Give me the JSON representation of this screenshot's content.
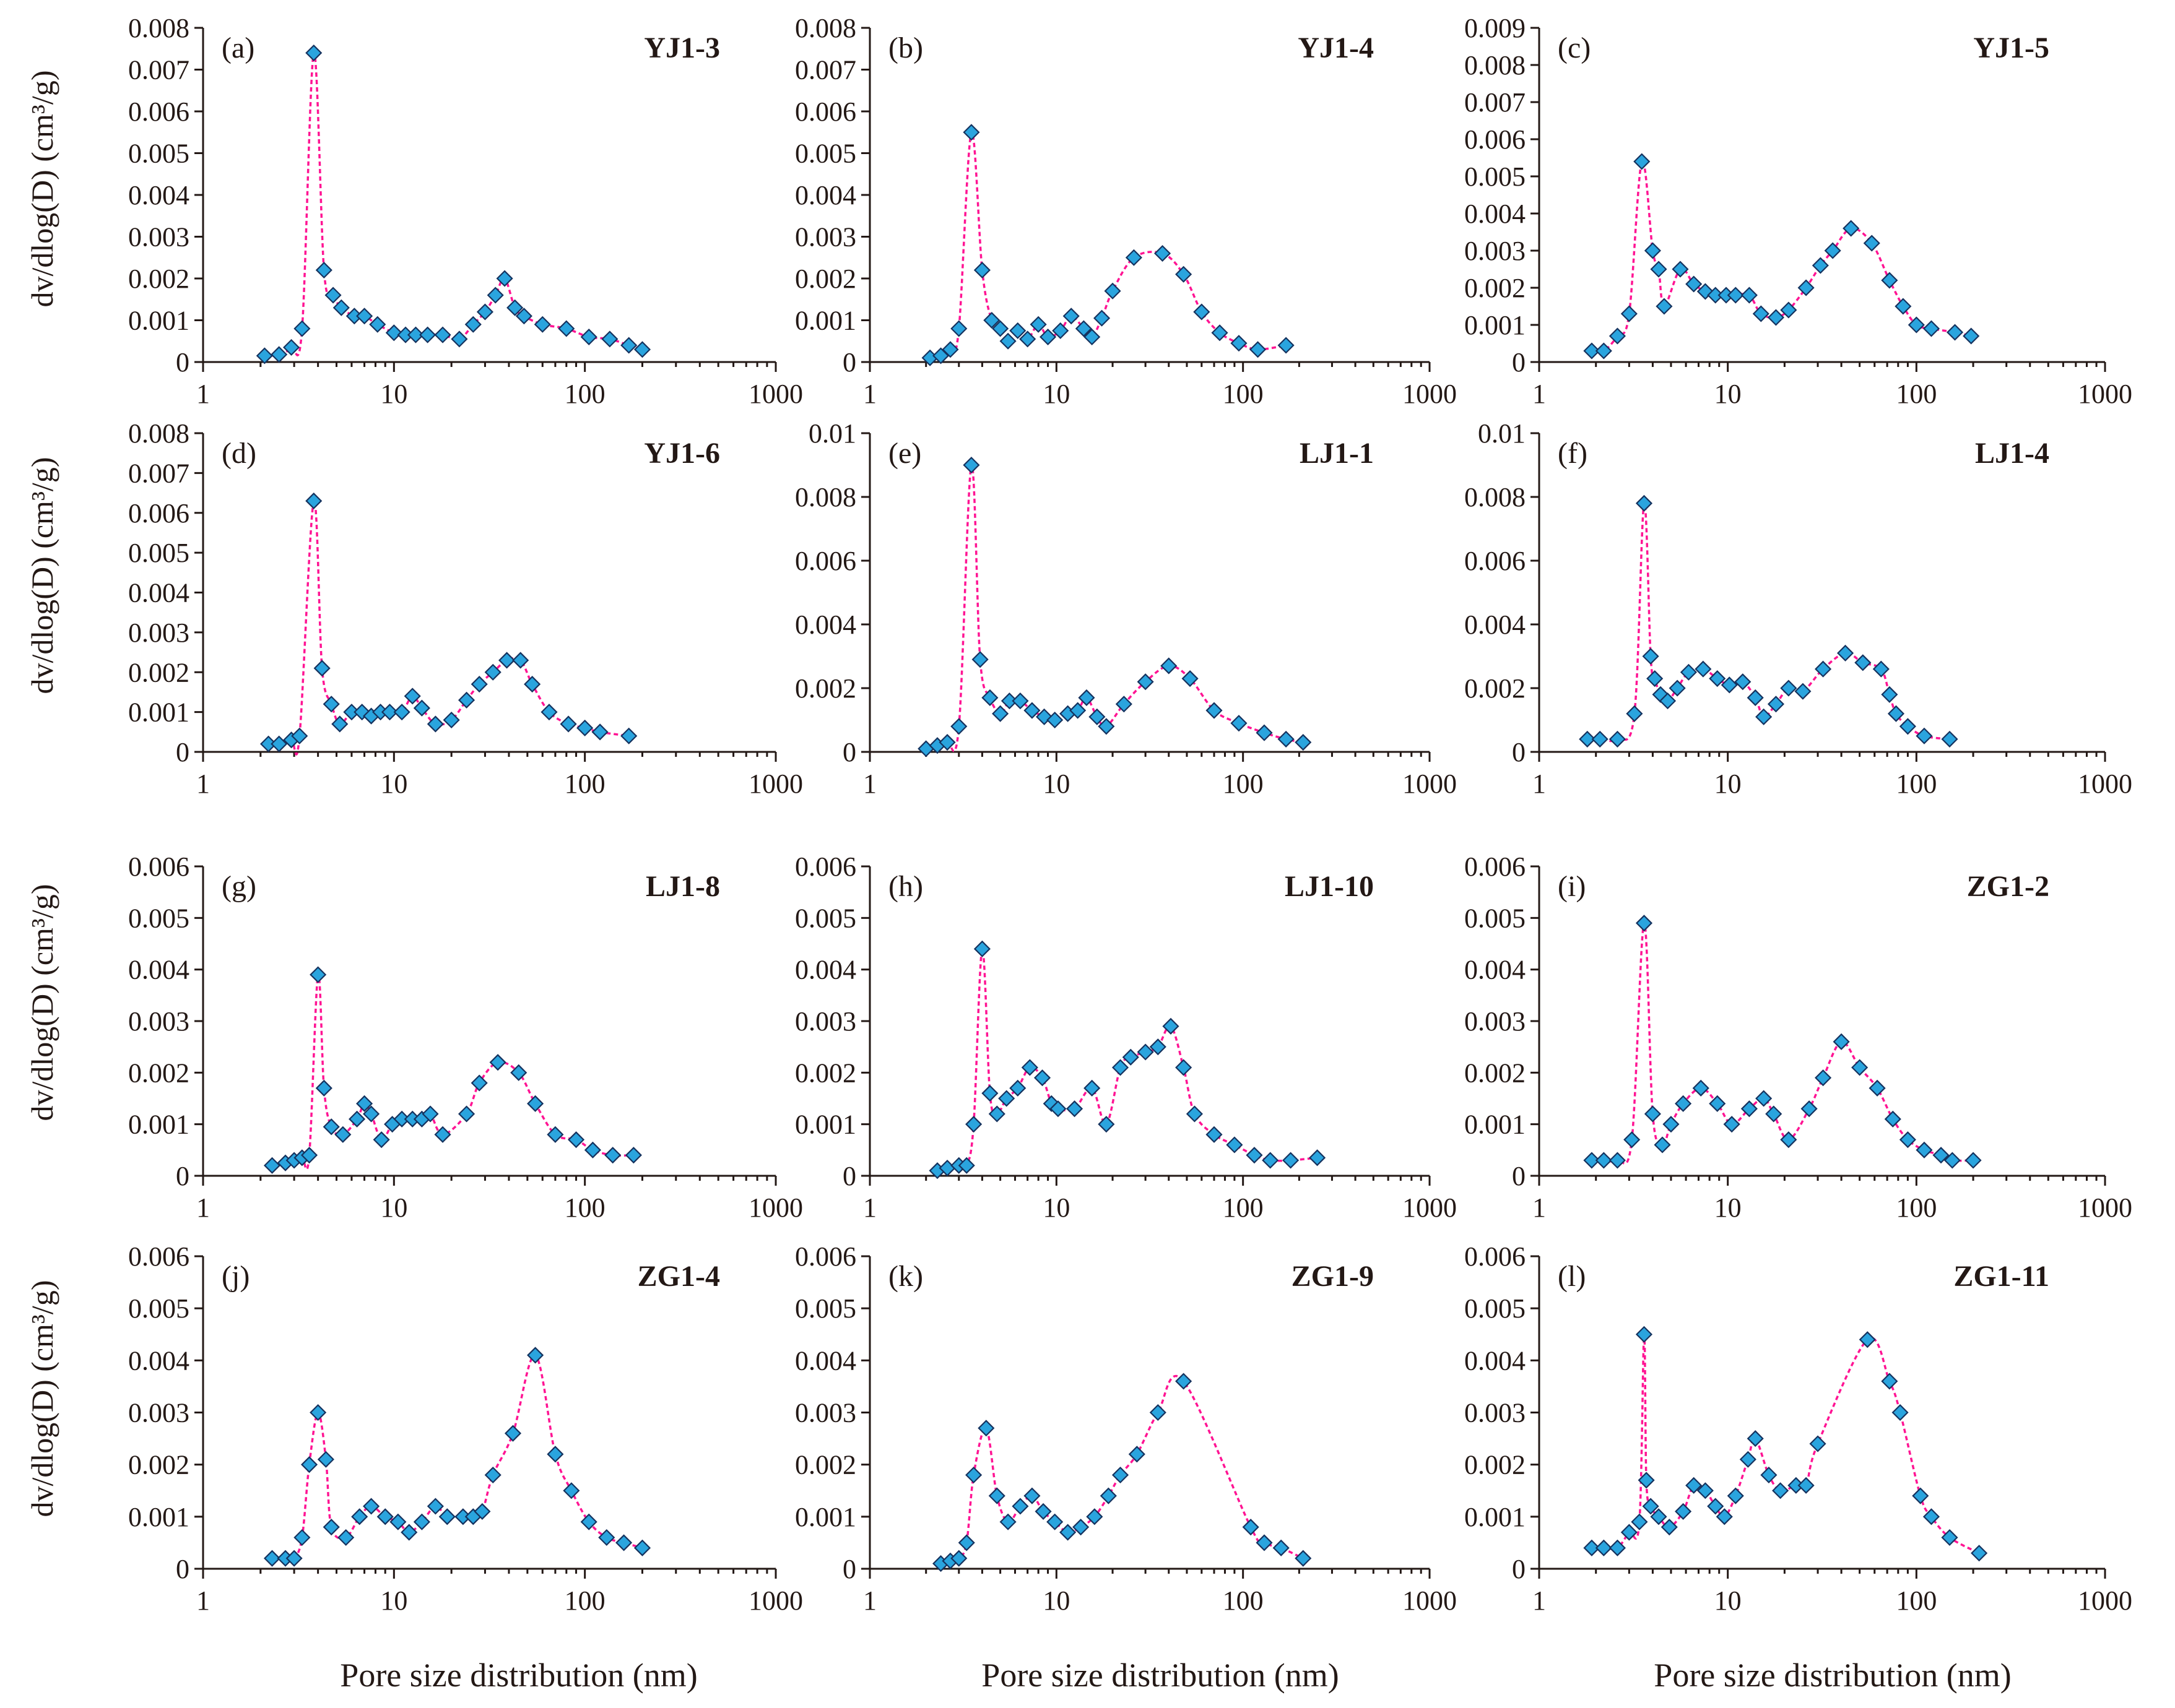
{
  "figure": {
    "y_axis_label": "dv/dlog(D) (cm³/g)",
    "x_axis_label": "Pore size distribution (nm)",
    "marker_color": "#2aa4de",
    "marker_edge_color": "#15325e",
    "curve_color": "#ff1493",
    "text_color": "#231815"
  },
  "chart_data": [
    {
      "type": "scatter",
      "panel": "(a)",
      "title": "YJ1-3",
      "xscale": "log",
      "xlim": [
        1,
        1000
      ],
      "x_ticks": [
        "1",
        "10",
        "100",
        "1000"
      ],
      "ylim": [
        0,
        0.008
      ],
      "y_ticks": [
        "0",
        "0.001",
        "0.002",
        "0.003",
        "0.004",
        "0.005",
        "0.006",
        "0.007",
        "0.008"
      ],
      "x": [
        2.1,
        2.5,
        2.9,
        3.3,
        3.8,
        4.3,
        4.8,
        5.3,
        6.2,
        7.0,
        8.2,
        10.0,
        11.5,
        13.0,
        15.0,
        18.0,
        22.0,
        26.0,
        30.0,
        34.0,
        38.0,
        43.0,
        48.0,
        60.0,
        80.0,
        105.0,
        135.0,
        170.0,
        200.0
      ],
      "y": [
        0.00015,
        0.00018,
        0.00035,
        0.0008,
        0.0074,
        0.0022,
        0.0016,
        0.0013,
        0.0011,
        0.0011,
        0.0009,
        0.0007,
        0.00065,
        0.00065,
        0.00065,
        0.00065,
        0.00055,
        0.0009,
        0.0012,
        0.0016,
        0.002,
        0.0013,
        0.0011,
        0.0009,
        0.0008,
        0.0006,
        0.00055,
        0.0004,
        0.0003
      ]
    },
    {
      "type": "scatter",
      "panel": "(b)",
      "title": "YJ1-4",
      "xscale": "log",
      "xlim": [
        1,
        1000
      ],
      "x_ticks": [
        "1",
        "10",
        "100",
        "1000"
      ],
      "ylim": [
        0,
        0.008
      ],
      "y_ticks": [
        "0",
        "0.001",
        "0.002",
        "0.003",
        "0.004",
        "0.005",
        "0.006",
        "0.007",
        "0.008"
      ],
      "x": [
        2.1,
        2.4,
        2.7,
        3.0,
        3.5,
        4.0,
        4.5,
        5.0,
        5.5,
        6.2,
        7.0,
        8.0,
        9.0,
        10.5,
        12.0,
        14.0,
        15.5,
        17.5,
        20.0,
        26.0,
        37.0,
        48.0,
        60.0,
        75.0,
        95.0,
        120.0,
        170.0
      ],
      "y": [
        0.0001,
        0.00015,
        0.0003,
        0.0008,
        0.0055,
        0.0022,
        0.001,
        0.0008,
        0.0005,
        0.00075,
        0.00055,
        0.0009,
        0.0006,
        0.00075,
        0.0011,
        0.0008,
        0.0006,
        0.00105,
        0.0017,
        0.0025,
        0.0026,
        0.0021,
        0.0012,
        0.0007,
        0.00045,
        0.0003,
        0.0004
      ]
    },
    {
      "type": "scatter",
      "panel": "(c)",
      "title": "YJ1-5",
      "xscale": "log",
      "xlim": [
        1,
        1000
      ],
      "x_ticks": [
        "1",
        "10",
        "100",
        "1000"
      ],
      "ylim": [
        0,
        0.009
      ],
      "y_ticks": [
        "0",
        "0.001",
        "0.002",
        "0.003",
        "0.004",
        "0.005",
        "0.006",
        "0.007",
        "0.008",
        "0.009"
      ],
      "x": [
        1.9,
        2.2,
        2.6,
        3.0,
        3.5,
        4.0,
        4.3,
        4.6,
        5.6,
        6.6,
        7.6,
        8.6,
        9.8,
        11.0,
        13.0,
        15.0,
        18.0,
        21.0,
        26.0,
        31.0,
        36.0,
        45.0,
        58.0,
        72.0,
        85.0,
        100.0,
        120.0,
        160.0,
        195.0
      ],
      "y": [
        0.0003,
        0.0003,
        0.0007,
        0.0013,
        0.0054,
        0.003,
        0.0025,
        0.0015,
        0.0025,
        0.0021,
        0.0019,
        0.0018,
        0.0018,
        0.0018,
        0.0018,
        0.0013,
        0.0012,
        0.0014,
        0.002,
        0.0026,
        0.003,
        0.0036,
        0.0032,
        0.0022,
        0.0015,
        0.001,
        0.0009,
        0.0008,
        0.0007
      ]
    },
    {
      "type": "scatter",
      "panel": "(d)",
      "title": "YJ1-6",
      "xscale": "log",
      "xlim": [
        1,
        1000
      ],
      "x_ticks": [
        "1",
        "10",
        "100",
        "1000"
      ],
      "ylim": [
        0,
        0.008
      ],
      "y_ticks": [
        "0",
        "0.001",
        "0.002",
        "0.003",
        "0.004",
        "0.005",
        "0.006",
        "0.007",
        "0.008"
      ],
      "x": [
        2.2,
        2.5,
        2.9,
        3.2,
        3.8,
        4.2,
        4.7,
        5.2,
        6.0,
        6.8,
        7.6,
        8.5,
        9.5,
        11.0,
        12.5,
        14.0,
        16.5,
        20.0,
        24.0,
        28.0,
        33.0,
        39.0,
        46.0,
        53.0,
        65.0,
        82.0,
        100.0,
        120.0,
        170.0
      ],
      "y": [
        0.0002,
        0.0002,
        0.0003,
        0.0004,
        0.0063,
        0.0021,
        0.0012,
        0.0007,
        0.001,
        0.001,
        0.0009,
        0.001,
        0.001,
        0.001,
        0.0014,
        0.0011,
        0.0007,
        0.0008,
        0.0013,
        0.0017,
        0.002,
        0.0023,
        0.0023,
        0.0017,
        0.001,
        0.0007,
        0.0006,
        0.0005,
        0.0004
      ]
    },
    {
      "type": "scatter",
      "panel": "(e)",
      "title": "LJ1-1",
      "xscale": "log",
      "xlim": [
        1,
        1000
      ],
      "x_ticks": [
        "1",
        "10",
        "100",
        "1000"
      ],
      "ylim": [
        0,
        0.01
      ],
      "y_ticks": [
        "0",
        "0.002",
        "0.004",
        "0.006",
        "0.008",
        "0.01"
      ],
      "x": [
        2.0,
        2.3,
        2.6,
        3.0,
        3.5,
        3.9,
        4.4,
        5.0,
        5.6,
        6.4,
        7.4,
        8.6,
        9.8,
        11.5,
        13.0,
        14.5,
        16.5,
        18.5,
        23.0,
        30.0,
        40.0,
        52.0,
        70.0,
        95.0,
        130.0,
        170.0,
        210.0
      ],
      "y": [
        0.0001,
        0.0002,
        0.0003,
        0.0008,
        0.009,
        0.0029,
        0.0017,
        0.0012,
        0.0016,
        0.0016,
        0.0013,
        0.0011,
        0.001,
        0.0012,
        0.0013,
        0.0017,
        0.0011,
        0.0008,
        0.0015,
        0.0022,
        0.0027,
        0.0023,
        0.0013,
        0.0009,
        0.0006,
        0.0004,
        0.0003
      ]
    },
    {
      "type": "scatter",
      "panel": "(f)",
      "title": "LJ1-4",
      "xscale": "log",
      "xlim": [
        1,
        1000
      ],
      "x_ticks": [
        "1",
        "10",
        "100",
        "1000"
      ],
      "ylim": [
        0,
        0.01
      ],
      "y_ticks": [
        "0",
        "0.002",
        "0.004",
        "0.006",
        "0.008",
        "0.01"
      ],
      "x": [
        1.8,
        2.1,
        2.6,
        3.2,
        3.6,
        3.9,
        4.1,
        4.4,
        4.8,
        5.4,
        6.2,
        7.4,
        8.8,
        10.2,
        12.0,
        14.0,
        15.5,
        18.0,
        21.0,
        25.0,
        32.0,
        42.0,
        52.0,
        65.0,
        72.0,
        78.0,
        90.0,
        110.0,
        150.0
      ],
      "y": [
        0.0004,
        0.0004,
        0.0004,
        0.0012,
        0.0078,
        0.003,
        0.0023,
        0.0018,
        0.0016,
        0.002,
        0.0025,
        0.0026,
        0.0023,
        0.0021,
        0.0022,
        0.0017,
        0.0011,
        0.0015,
        0.002,
        0.0019,
        0.0026,
        0.0031,
        0.0028,
        0.0026,
        0.0018,
        0.0012,
        0.0008,
        0.0005,
        0.0004
      ]
    },
    {
      "type": "scatter",
      "panel": "(g)",
      "title": "LJ1-8",
      "xscale": "log",
      "xlim": [
        1,
        1000
      ],
      "x_ticks": [
        "1",
        "10",
        "100",
        "1000"
      ],
      "ylim": [
        0,
        0.006
      ],
      "y_ticks": [
        "0",
        "0.001",
        "0.002",
        "0.003",
        "0.004",
        "0.005",
        "0.006"
      ],
      "x": [
        2.3,
        2.7,
        3.0,
        3.3,
        3.6,
        4.0,
        4.3,
        4.7,
        5.4,
        6.4,
        7.0,
        7.6,
        8.6,
        9.8,
        11.0,
        12.5,
        14.0,
        15.5,
        18.0,
        24.0,
        28.0,
        35.0,
        45.0,
        55.0,
        70.0,
        90.0,
        110.0,
        140.0,
        180.0
      ],
      "y": [
        0.0002,
        0.00025,
        0.0003,
        0.00035,
        0.0004,
        0.0039,
        0.0017,
        0.00095,
        0.0008,
        0.0011,
        0.0014,
        0.0012,
        0.0007,
        0.001,
        0.0011,
        0.0011,
        0.0011,
        0.0012,
        0.0008,
        0.0012,
        0.0018,
        0.0022,
        0.002,
        0.0014,
        0.0008,
        0.0007,
        0.0005,
        0.0004,
        0.0004
      ]
    },
    {
      "type": "scatter",
      "panel": "(h)",
      "title": "LJ1-10",
      "xscale": "log",
      "xlim": [
        1,
        1000
      ],
      "x_ticks": [
        "1",
        "10",
        "100",
        "1000"
      ],
      "ylim": [
        0,
        0.006
      ],
      "y_ticks": [
        "0",
        "0.001",
        "0.002",
        "0.003",
        "0.004",
        "0.005",
        "0.006"
      ],
      "x": [
        2.3,
        2.6,
        3.0,
        3.3,
        3.6,
        4.0,
        4.4,
        4.8,
        5.4,
        6.2,
        7.2,
        8.4,
        9.4,
        10.2,
        12.5,
        15.5,
        18.5,
        22.0,
        25.0,
        30.0,
        35.0,
        41.0,
        48.0,
        55.0,
        70.0,
        90.0,
        115.0,
        140.0,
        180.0,
        250.0
      ],
      "y": [
        0.0001,
        0.00015,
        0.0002,
        0.0002,
        0.001,
        0.0044,
        0.0016,
        0.0012,
        0.0015,
        0.0017,
        0.0021,
        0.0019,
        0.0014,
        0.0013,
        0.0013,
        0.0017,
        0.001,
        0.0021,
        0.0023,
        0.0024,
        0.0025,
        0.0029,
        0.0021,
        0.0012,
        0.0008,
        0.0006,
        0.0004,
        0.0003,
        0.0003,
        0.00035
      ]
    },
    {
      "type": "scatter",
      "panel": "(i)",
      "title": "ZG1-2",
      "xscale": "log",
      "xlim": [
        1,
        1000
      ],
      "x_ticks": [
        "1",
        "10",
        "100",
        "1000"
      ],
      "ylim": [
        0,
        0.006
      ],
      "y_ticks": [
        "0",
        "0.001",
        "0.002",
        "0.003",
        "0.004",
        "0.005",
        "0.006"
      ],
      "x": [
        1.9,
        2.2,
        2.6,
        3.1,
        3.6,
        4.0,
        4.5,
        5.0,
        5.8,
        7.2,
        8.8,
        10.5,
        13.0,
        15.5,
        17.5,
        21.0,
        27.0,
        32.0,
        40.0,
        50.0,
        62.0,
        75.0,
        90.0,
        110.0,
        135.0,
        155.0,
        200.0
      ],
      "y": [
        0.0003,
        0.0003,
        0.0003,
        0.0007,
        0.0049,
        0.0012,
        0.0006,
        0.001,
        0.0014,
        0.0017,
        0.0014,
        0.001,
        0.0013,
        0.0015,
        0.0012,
        0.0007,
        0.0013,
        0.0019,
        0.0026,
        0.0021,
        0.0017,
        0.0011,
        0.0007,
        0.0005,
        0.0004,
        0.0003,
        0.0003
      ]
    },
    {
      "type": "scatter",
      "panel": "(j)",
      "title": "ZG1-4",
      "xscale": "log",
      "xlim": [
        1,
        1000
      ],
      "x_ticks": [
        "1",
        "10",
        "100",
        "1000"
      ],
      "ylim": [
        0,
        0.006
      ],
      "y_ticks": [
        "0",
        "0.001",
        "0.002",
        "0.003",
        "0.004",
        "0.005",
        "0.006"
      ],
      "x": [
        2.3,
        2.7,
        3.0,
        3.3,
        3.6,
        4.0,
        4.4,
        4.7,
        5.6,
        6.6,
        7.6,
        9.0,
        10.5,
        12.0,
        14.0,
        16.5,
        19.0,
        23.0,
        26.0,
        29.0,
        33.0,
        42.0,
        55.0,
        70.0,
        85.0,
        105.0,
        130.0,
        160.0,
        200.0
      ],
      "y": [
        0.0002,
        0.0002,
        0.0002,
        0.0006,
        0.002,
        0.003,
        0.0021,
        0.0008,
        0.0006,
        0.001,
        0.0012,
        0.001,
        0.0009,
        0.0007,
        0.0009,
        0.0012,
        0.001,
        0.001,
        0.001,
        0.0011,
        0.0018,
        0.0026,
        0.0041,
        0.0022,
        0.0015,
        0.0009,
        0.0006,
        0.0005,
        0.0004
      ]
    },
    {
      "type": "scatter",
      "panel": "(k)",
      "title": "ZG1-9",
      "xscale": "log",
      "xlim": [
        1,
        1000
      ],
      "x_ticks": [
        "1",
        "10",
        "100",
        "1000"
      ],
      "ylim": [
        0,
        0.006
      ],
      "y_ticks": [
        "0",
        "0.001",
        "0.002",
        "0.003",
        "0.004",
        "0.005",
        "0.006"
      ],
      "x": [
        2.4,
        2.7,
        3.0,
        3.3,
        3.6,
        4.2,
        4.8,
        5.5,
        6.4,
        7.4,
        8.5,
        9.8,
        11.5,
        13.5,
        16.0,
        19.0,
        22.0,
        27.0,
        35.0,
        48.0,
        110.0,
        130.0,
        160.0,
        210.0
      ],
      "y": [
        0.0001,
        0.00015,
        0.0002,
        0.0005,
        0.0018,
        0.0027,
        0.0014,
        0.0009,
        0.0012,
        0.0014,
        0.0011,
        0.0009,
        0.0007,
        0.0008,
        0.001,
        0.0014,
        0.0018,
        0.0022,
        0.003,
        0.0036,
        0.0008,
        0.0005,
        0.0004,
        0.0002
      ]
    },
    {
      "type": "scatter",
      "panel": "(l)",
      "title": "ZG1-11",
      "xscale": "log",
      "xlim": [
        1,
        1000
      ],
      "x_ticks": [
        "1",
        "10",
        "100",
        "1000"
      ],
      "ylim": [
        0,
        0.006
      ],
      "y_ticks": [
        "0",
        "0.001",
        "0.002",
        "0.003",
        "0.004",
        "0.005",
        "0.006"
      ],
      "x": [
        1.9,
        2.2,
        2.6,
        3.0,
        3.4,
        3.6,
        3.7,
        3.9,
        4.3,
        4.9,
        5.8,
        6.6,
        7.6,
        8.6,
        9.6,
        11.0,
        12.8,
        14.0,
        16.5,
        19.0,
        23.0,
        26.0,
        30.0,
        55.0,
        72.0,
        82.0,
        105.0,
        120.0,
        150.0,
        215.0
      ],
      "y": [
        0.0004,
        0.0004,
        0.0004,
        0.0007,
        0.0009,
        0.0045,
        0.0017,
        0.0012,
        0.001,
        0.0008,
        0.0011,
        0.0016,
        0.0015,
        0.0012,
        0.001,
        0.0014,
        0.0021,
        0.0025,
        0.0018,
        0.0015,
        0.0016,
        0.0016,
        0.0024,
        0.0044,
        0.0036,
        0.003,
        0.0014,
        0.001,
        0.0006,
        0.0003
      ]
    }
  ]
}
